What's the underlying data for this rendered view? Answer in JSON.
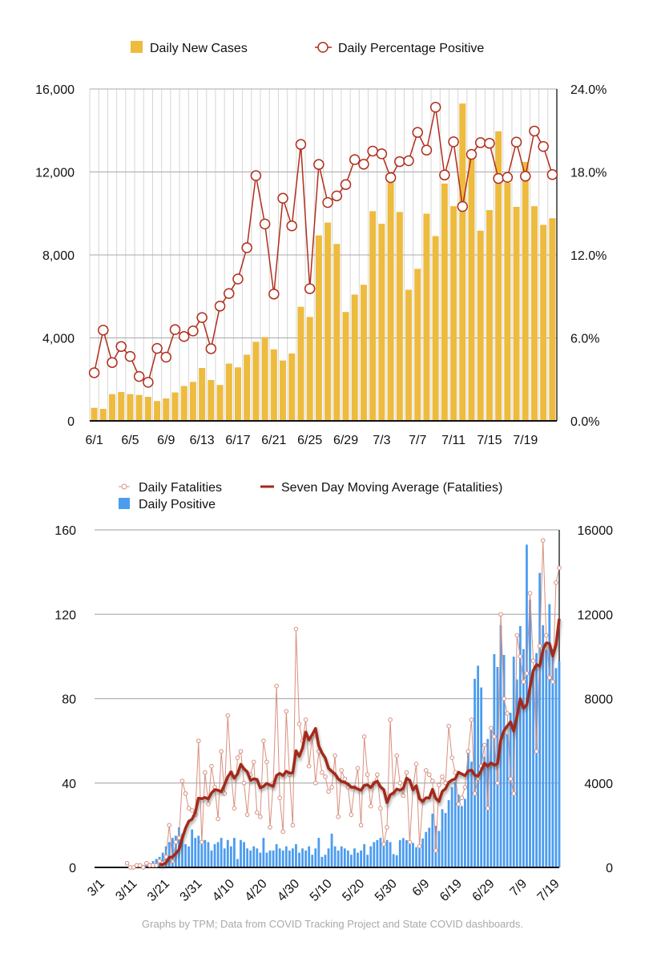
{
  "colors": {
    "cases_bar": "#EDBB3E",
    "pct_line": "#B02E1C",
    "positive_bar": "#4B9CF0",
    "fatal_line": "#D8907F",
    "ma_line": "#A3291A"
  },
  "footer": "Graphs by TPM; Data from COVID Tracking Project and State COVID dashboards.",
  "chart_data": [
    {
      "type": "bar",
      "title": "",
      "legend": [
        "Daily New Cases",
        "Daily Percentage Positive"
      ],
      "legend_position": "top",
      "grid": true,
      "start_date": "6/1",
      "x_tick_labels": [
        "6/1",
        "6/5",
        "6/9",
        "6/13",
        "6/17",
        "6/21",
        "6/25",
        "6/29",
        "7/3",
        "7/7",
        "7/11",
        "7/15",
        "7/19"
      ],
      "y_left": {
        "range": [
          0,
          16000
        ],
        "ticks": [
          "0",
          "4,000",
          "8,000",
          "12,000",
          "16,000"
        ]
      },
      "y_right": {
        "range": [
          0,
          24
        ],
        "ticks": [
          "0.0%",
          "6.0%",
          "12.0%",
          "18.0%",
          "24.0%"
        ]
      },
      "series": [
        {
          "name": "Daily New Cases",
          "type": "bar",
          "axis": "left",
          "values": [
            630,
            580,
            1290,
            1390,
            1290,
            1250,
            1160,
            955,
            1080,
            1370,
            1680,
            1880,
            2550,
            1970,
            1730,
            2760,
            2580,
            3190,
            3810,
            4040,
            3450,
            2910,
            3250,
            5500,
            5010,
            8940,
            9560,
            8530,
            5250,
            6090,
            6560,
            10110,
            9500,
            11480,
            10070,
            6320,
            7330,
            9990,
            8910,
            11440,
            10350,
            15300,
            12680,
            9170,
            10160,
            13960,
            11480,
            10320,
            12480,
            10350,
            9450,
            9770
          ]
        },
        {
          "name": "Daily Percentage Positive",
          "type": "line",
          "axis": "right",
          "values": [
            3.48,
            6.56,
            4.22,
            5.38,
            4.66,
            3.21,
            2.79,
            5.24,
            4.61,
            6.6,
            6.1,
            6.5,
            7.47,
            5.22,
            8.3,
            9.21,
            10.26,
            12.52,
            17.73,
            14.24,
            9.17,
            16.1,
            14.1,
            19.99,
            9.56,
            18.54,
            15.79,
            16.27,
            17.09,
            18.89,
            18.56,
            19.51,
            19.31,
            17.59,
            18.75,
            18.81,
            20.86,
            19.58,
            22.68,
            17.78,
            20.18,
            15.5,
            19.27,
            20.12,
            20.07,
            17.53,
            17.61,
            20.16,
            17.69,
            20.96,
            19.84,
            17.81
          ]
        }
      ]
    },
    {
      "type": "bar",
      "title": "",
      "legend": [
        "Daily Fatalities",
        "Daily Positive",
        "Seven Day Moving Average (Fatalities)"
      ],
      "legend_position": "top",
      "grid": true,
      "start_date": "3/1",
      "x_tick_labels": [
        "3/1",
        "3/11",
        "3/21",
        "3/31",
        "4/10",
        "4/20",
        "4/30",
        "5/10",
        "5/20",
        "5/30",
        "6/9",
        "6/19",
        "6/29",
        "7/9",
        "7/19"
      ],
      "y_left": {
        "range": [
          0,
          160
        ],
        "ticks": [
          "0",
          "40",
          "80",
          "120",
          "160"
        ]
      },
      "y_right": {
        "range": [
          0,
          16000
        ],
        "ticks": [
          "0",
          "4000",
          "8000",
          "12000",
          "16000"
        ]
      },
      "ma_window": 7,
      "series": [
        {
          "name": "Daily Positive",
          "type": "bar",
          "axis": "right",
          "values": [
            0,
            0,
            0,
            0,
            0,
            0,
            0,
            0,
            0,
            0,
            0,
            0,
            0,
            0,
            50,
            100,
            150,
            200,
            300,
            400,
            500,
            700,
            1000,
            1200,
            1400,
            1500,
            1900,
            1600,
            1100,
            1000,
            1800,
            1400,
            1500,
            1100,
            1300,
            1200,
            800,
            1100,
            1200,
            1400,
            900,
            1300,
            1000,
            1400,
            400,
            1300,
            1200,
            900,
            800,
            1000,
            900,
            700,
            1400,
            700,
            800,
            800,
            1100,
            900,
            800,
            1000,
            800,
            900,
            1100,
            700,
            900,
            800,
            1000,
            600,
            900,
            1400,
            500,
            600,
            900,
            1600,
            1000,
            800,
            1000,
            900,
            800,
            600,
            900,
            700,
            800,
            1100,
            600,
            1000,
            1200,
            1300,
            1400,
            1200,
            1300,
            1200,
            630,
            580,
            1290,
            1390,
            1290,
            1250,
            1160,
            955,
            1080,
            1370,
            1680,
            1880,
            2550,
            1970,
            1730,
            2760,
            2580,
            3190,
            3810,
            4040,
            3450,
            2910,
            3250,
            5500,
            5010,
            8940,
            9560,
            8530,
            5250,
            6090,
            6560,
            10110,
            9500,
            11480,
            10070,
            6320,
            7330,
            9990,
            8910,
            11440,
            10350,
            15300,
            12680,
            9170,
            10160,
            13960,
            11480,
            10320,
            12480,
            10350,
            9450,
            9770
          ]
        },
        {
          "name": "Daily Fatalities",
          "type": "line",
          "axis": "left",
          "values": [
            null,
            null,
            null,
            null,
            null,
            null,
            null,
            null,
            null,
            null,
            2,
            0,
            0,
            1,
            1,
            0,
            2,
            1,
            1,
            1,
            3,
            2,
            5,
            20,
            3,
            12,
            14,
            41,
            35,
            28,
            27,
            25,
            60,
            12,
            45,
            30,
            48,
            38,
            23,
            55,
            35,
            72,
            45,
            28,
            52,
            55,
            40,
            25,
            44,
            50,
            26,
            24,
            60,
            50,
            19,
            40,
            86,
            33,
            17,
            74,
            44,
            20,
            113,
            68,
            60,
            70,
            48,
            62,
            40,
            55,
            45,
            43,
            36,
            38,
            53,
            24,
            46,
            42,
            38,
            25,
            38,
            47,
            20,
            62,
            44,
            29,
            40,
            44,
            28,
            11,
            19,
            70,
            35,
            53,
            40,
            34,
            45,
            12,
            38,
            49,
            10,
            31,
            46,
            44,
            41,
            8,
            39,
            43,
            40,
            67,
            52,
            45,
            30,
            33,
            38,
            55,
            70,
            35,
            42,
            48,
            58,
            28,
            66,
            62,
            40,
            120,
            80,
            73,
            42,
            35,
            110,
            100,
            88,
            92,
            130,
            98,
            55,
            105,
            155,
            110,
            90,
            88,
            135,
            142
          ]
        }
      ]
    }
  ]
}
